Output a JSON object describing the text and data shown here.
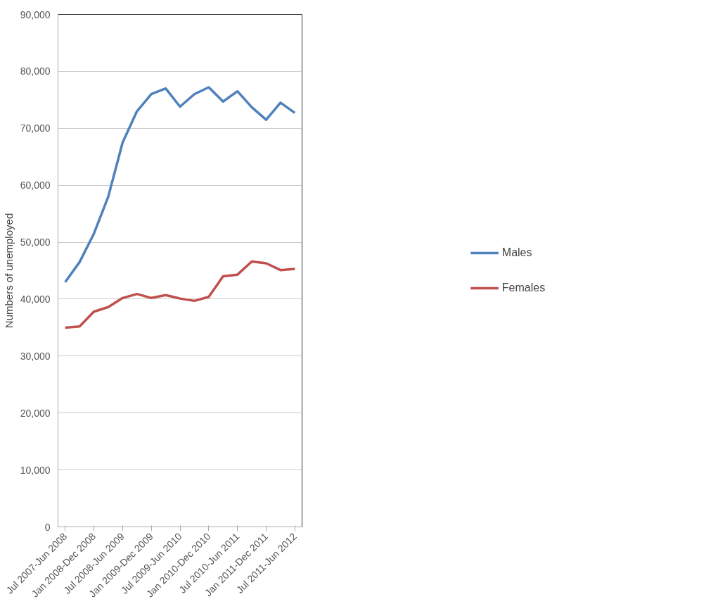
{
  "chart_data": {
    "type": "line",
    "ylabel": "Numbers of unemployed",
    "categories": [
      "Jul 2007-Jun 2008",
      null,
      "Jan 2008-Dec 2008",
      null,
      "Jul 2008-Jun 2009",
      null,
      "Jan 2009-Dec 2009",
      null,
      "Jul 2009-Jun 2010",
      null,
      "Jan 2010-Dec 2010",
      null,
      "Jul 2010-Jun 2011",
      null,
      "Jan 2011-Dec 2011",
      null,
      "Jul 2011-Jun 2012"
    ],
    "series": [
      {
        "name": "Males",
        "color": "#4f81bd",
        "values": [
          43000,
          46500,
          51500,
          58000,
          67500,
          73000,
          76000,
          77000,
          73800,
          76000,
          77200,
          74700,
          76500,
          73700,
          71500,
          74500,
          72700
        ]
      },
      {
        "name": "Females",
        "color": "#c0504d",
        "values": [
          35000,
          35200,
          37800,
          38600,
          40200,
          40900,
          40200,
          40700,
          40100,
          39700,
          40400,
          44000,
          44300,
          46600,
          46300,
          45100,
          45300
        ]
      }
    ],
    "ylim": [
      0,
      90000
    ],
    "yticks": [
      {
        "value": 0,
        "label": "0"
      },
      {
        "value": 10000,
        "label": "10,000"
      },
      {
        "value": 20000,
        "label": "20,000"
      },
      {
        "value": 30000,
        "label": "30,000"
      },
      {
        "value": 40000,
        "label": "40,000"
      },
      {
        "value": 50000,
        "label": "50,000"
      },
      {
        "value": 60000,
        "label": "60,000"
      },
      {
        "value": 70000,
        "label": "70,000"
      },
      {
        "value": 80000,
        "label": "80,000"
      },
      {
        "value": 90000,
        "label": "90,000"
      }
    ],
    "grid": "y",
    "legend": "right",
    "marker": "none",
    "line_style": "solid"
  }
}
